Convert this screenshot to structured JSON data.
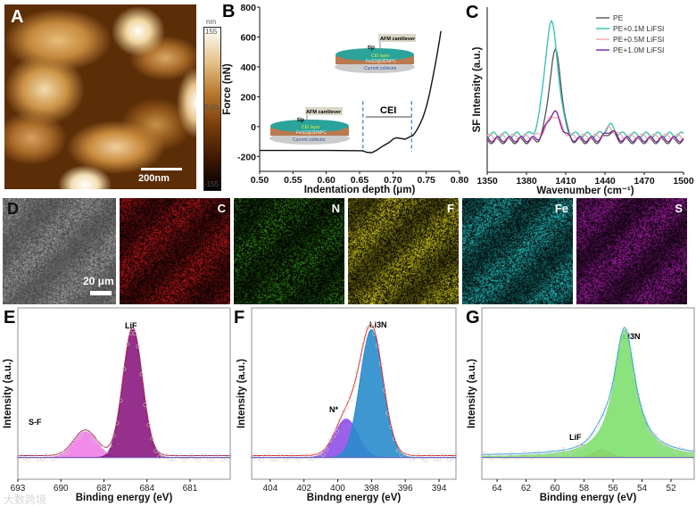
{
  "panels": {
    "A": {
      "label": "A",
      "colorbar_unit": "nm",
      "colorbar_max": "155",
      "colorbar_mid": "0.00",
      "colorbar_min": "-155",
      "scale_bar": "200nm"
    },
    "B": {
      "label": "B",
      "annotation_cei": "CEI",
      "inset_top": {
        "cantilever": "AFM cantilever",
        "tip": "tip",
        "layer1": "CEI layer",
        "layer2": "FeS2@3DNPC",
        "layer3": "Current collector"
      },
      "inset_bottom": {
        "cantilever": "AFM cantilever",
        "tip": "tip",
        "layer1": "CEI layer",
        "layer2": "FeS2@3DNPC",
        "layer3": "Current collector"
      }
    },
    "C": {
      "label": "C"
    },
    "D": {
      "label": "D",
      "scale_bar": "20 μm",
      "maps": [
        "C",
        "N",
        "F",
        "Fe",
        "S"
      ],
      "map_colors": [
        "#c0181c",
        "#3aa01a",
        "#d8d020",
        "#28c8c8",
        "#b020b0"
      ]
    },
    "E": {
      "label": "E",
      "annotations": [
        "S-F",
        "LiF"
      ]
    },
    "F": {
      "label": "F",
      "annotations": [
        "N*",
        "Li3N"
      ]
    },
    "G": {
      "label": "G",
      "annotations": [
        "LiF",
        "Li3N"
      ]
    }
  },
  "watermark": "大数跨境",
  "chart_data": [
    {
      "id": "B",
      "type": "line",
      "xlabel": "Indentation depth (μm)",
      "ylabel": "Force (nN)",
      "xlim": [
        0.5,
        0.8
      ],
      "ylim": [
        -300,
        800
      ],
      "xticks": [
        "0.50",
        "0.55",
        "0.60",
        "0.65",
        "0.70",
        "0.75",
        "0.80"
      ],
      "xtick_values": [
        0.5,
        0.55,
        0.6,
        0.65,
        0.7,
        0.75,
        0.8
      ],
      "yticks": [
        "-200",
        "0",
        "200",
        "400",
        "600",
        "800"
      ],
      "ytick_values": [
        -200,
        0,
        200,
        400,
        600,
        800
      ],
      "series": [
        {
          "name": "force curve",
          "color": "#111111",
          "x": [
            0.5,
            0.6,
            0.655,
            0.66,
            0.668,
            0.675,
            0.685,
            0.695,
            0.7,
            0.705,
            0.712,
            0.718,
            0.725,
            0.73,
            0.735,
            0.74,
            0.745,
            0.75,
            0.755,
            0.76,
            0.765,
            0.77,
            0.772
          ],
          "y": [
            -160,
            -160,
            -162,
            -172,
            -175,
            -160,
            -130,
            -105,
            -85,
            -75,
            -80,
            -85,
            -70,
            -60,
            -30,
            10,
            60,
            130,
            220,
            330,
            450,
            580,
            640
          ]
        }
      ],
      "markers": [
        {
          "type": "vline",
          "x": 0.655,
          "color": "#2a7ab8"
        },
        {
          "type": "vline",
          "x": 0.728,
          "color": "#2a7ab8"
        }
      ]
    },
    {
      "id": "C",
      "type": "line",
      "xlabel": "Wavenumber (cm⁻¹)",
      "ylabel": "SF Intensity (a.u.)",
      "xlim": [
        1350,
        1500
      ],
      "ylim": [
        -0.4,
        1.45
      ],
      "xticks": [
        "1350",
        "1380",
        "1410",
        "1440",
        "1470",
        "1500"
      ],
      "xtick_values": [
        1350,
        1380,
        1410,
        1440,
        1470,
        1500
      ],
      "legend_position": "top-right",
      "series": [
        {
          "name": "PE",
          "color": "#555555",
          "peak_center": 1402,
          "peak_height": 1.0,
          "peak_fwhm": 11,
          "offset": -0.05
        },
        {
          "name": "PE+0.1M LiFSI",
          "color": "#30c0b0",
          "peak_center": 1399,
          "peak_height": 1.25,
          "peak_fwhm": 12,
          "offset": 0.02
        },
        {
          "name": "PE+0.5M LiFSI",
          "color": "#f0a8a8",
          "peak_center": 1401,
          "peak_height": 0.24,
          "peak_fwhm": 12,
          "offset": 0.0
        },
        {
          "name": "PE+1.0M LiFSI",
          "color": "#8020a0",
          "peak_center": 1401,
          "peak_height": 0.3,
          "peak_fwhm": 12,
          "offset": -0.03
        }
      ]
    },
    {
      "id": "E",
      "type": "area",
      "xlabel": "Binding energy (eV)",
      "ylabel": "Intensity (a.u.)",
      "xlim": [
        693,
        678.2
      ],
      "ylim": [
        -0.17,
        1.17
      ],
      "xticks": [
        "693",
        "690",
        "687",
        "684",
        "681"
      ],
      "xtick_values": [
        693,
        690,
        687,
        684,
        681
      ],
      "peaks": [
        {
          "name": "S-F",
          "center": 688.3,
          "height": 0.2,
          "fwhm": 1.9,
          "color": "#f07ee8"
        },
        {
          "name": "LiF",
          "center": 685.0,
          "height": 1.0,
          "fwhm": 1.6,
          "color": "#8a1a80"
        }
      ],
      "envelope_color": "#b03050"
    },
    {
      "id": "F",
      "type": "area",
      "xlabel": "Bindng energy (eV)",
      "ylabel": "Intensity (a.u.)",
      "xlim": [
        405.1,
        393.0
      ],
      "ylim": [
        -0.17,
        1.17
      ],
      "xticks": [
        "404",
        "402",
        "400",
        "398",
        "396",
        "394"
      ],
      "xtick_values": [
        404,
        402,
        400,
        398,
        396,
        394
      ],
      "peaks": [
        {
          "name": "N*",
          "center": 399.5,
          "height": 0.3,
          "fwhm": 1.6,
          "color": "#9050e8"
        },
        {
          "name": "Li3N",
          "center": 398.0,
          "height": 1.0,
          "fwhm": 1.6,
          "color": "#2a8ccc"
        }
      ],
      "envelope_color": "#e03030"
    },
    {
      "id": "G",
      "type": "area",
      "xlabel": "Binding energy (eV)",
      "ylabel": "Intensity (a.u.)",
      "xlim": [
        65.05,
        50.4
      ],
      "ylim": [
        -0.17,
        1.17
      ],
      "xticks": [
        "64",
        "62",
        "60",
        "58",
        "56",
        "54",
        "52"
      ],
      "xtick_values": [
        64,
        62,
        60,
        58,
        56,
        54,
        52
      ],
      "peaks": [
        {
          "name": "LiF",
          "center": 56.8,
          "height": 0.06,
          "fwhm": 1.4,
          "color": "#e07040"
        },
        {
          "name": "Li3N",
          "center": 55.2,
          "height": 1.0,
          "fwhm": 1.8,
          "color": "#80e070",
          "lorentz": true
        }
      ],
      "envelope_color": "#30a0e0"
    }
  ]
}
